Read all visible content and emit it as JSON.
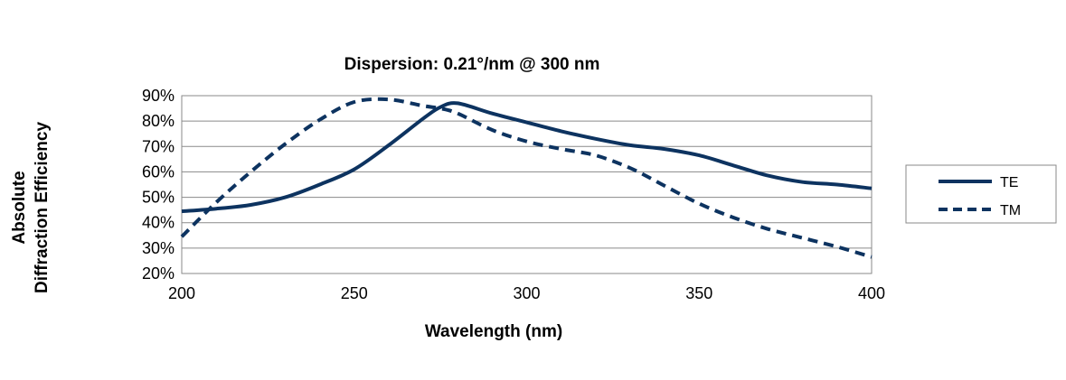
{
  "chart_data": {
    "type": "line",
    "title": "Dispersion: 0.21°/nm @ 300 nm",
    "xlabel": "Wavelength (nm)",
    "ylabel_lines": [
      "Absolute",
      "Diffraction Efficiency"
    ],
    "xlim": [
      200,
      400
    ],
    "ylim": [
      20,
      90
    ],
    "xticks": [
      "200",
      "250",
      "300",
      "350",
      "400"
    ],
    "yticks": [
      "20%",
      "30%",
      "40%",
      "50%",
      "60%",
      "70%",
      "80%",
      "90%"
    ],
    "grid": "horizontal",
    "legend_position": "right",
    "colors": {
      "series": "#0d3360",
      "grid": "#8a8a8a",
      "frame": "#8a8a8a"
    },
    "x": [
      200,
      210,
      220,
      230,
      240,
      250,
      260,
      270,
      275,
      280,
      290,
      300,
      310,
      320,
      330,
      340,
      350,
      360,
      370,
      380,
      390,
      400
    ],
    "series": [
      {
        "name": "TE",
        "style": "solid",
        "values": [
          44.5,
          45.5,
          47,
          50,
          55,
          61,
          70.5,
          81,
          85.5,
          87,
          83,
          79.5,
          76,
          73,
          70.5,
          69,
          66.5,
          62.5,
          58.5,
          56,
          55,
          53.5
        ]
      },
      {
        "name": "TM",
        "style": "dashed",
        "values": [
          34.5,
          48,
          60,
          71,
          80.5,
          87.5,
          88.5,
          86,
          85,
          83,
          76.5,
          72,
          69,
          66.5,
          61.5,
          54.5,
          47.5,
          42,
          37.5,
          34,
          30.5,
          26.5
        ]
      }
    ]
  }
}
